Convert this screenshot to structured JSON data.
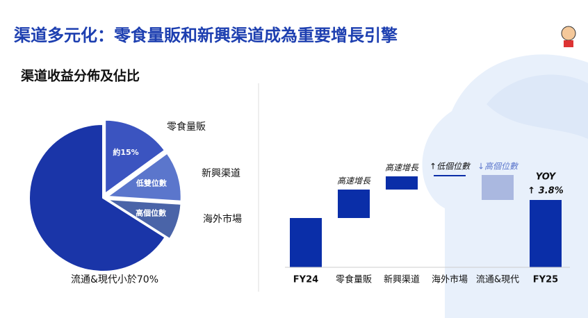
{
  "header": {
    "title": "渠道多元化：零食量販和新興渠道成為重要增長引擎"
  },
  "chart_data": [
    {
      "type": "pie",
      "title": "渠道收益分佈及佔比",
      "categories": [
        "零食量販",
        "新興渠道",
        "海外市場",
        "流通&現代小於70%"
      ],
      "values": [
        15,
        11,
        8,
        66
      ],
      "value_labels": [
        "約15%",
        "低雙位數",
        "高個位數",
        null
      ],
      "colors": [
        "#3b54c0",
        "#5b76cc",
        "#4a64a8",
        "#1a35a8"
      ]
    },
    {
      "type": "waterfall",
      "categories": [
        "FY24",
        "零食量販",
        "新興渠道",
        "海外市場",
        "流通&現代",
        "FY25"
      ],
      "values": [
        71,
        41,
        19,
        2,
        -36,
        97
      ],
      "value_labels": [
        null,
        "高速增長",
        "高速增長",
        "↑低個位數",
        "↓高個位數",
        null
      ],
      "totals": [
        true,
        false,
        false,
        false,
        false,
        true
      ],
      "color": "#0a2ea8",
      "decrease_color": "#aab8e0",
      "annotations": [
        "YOY",
        "↑ 3.8%"
      ]
    }
  ]
}
